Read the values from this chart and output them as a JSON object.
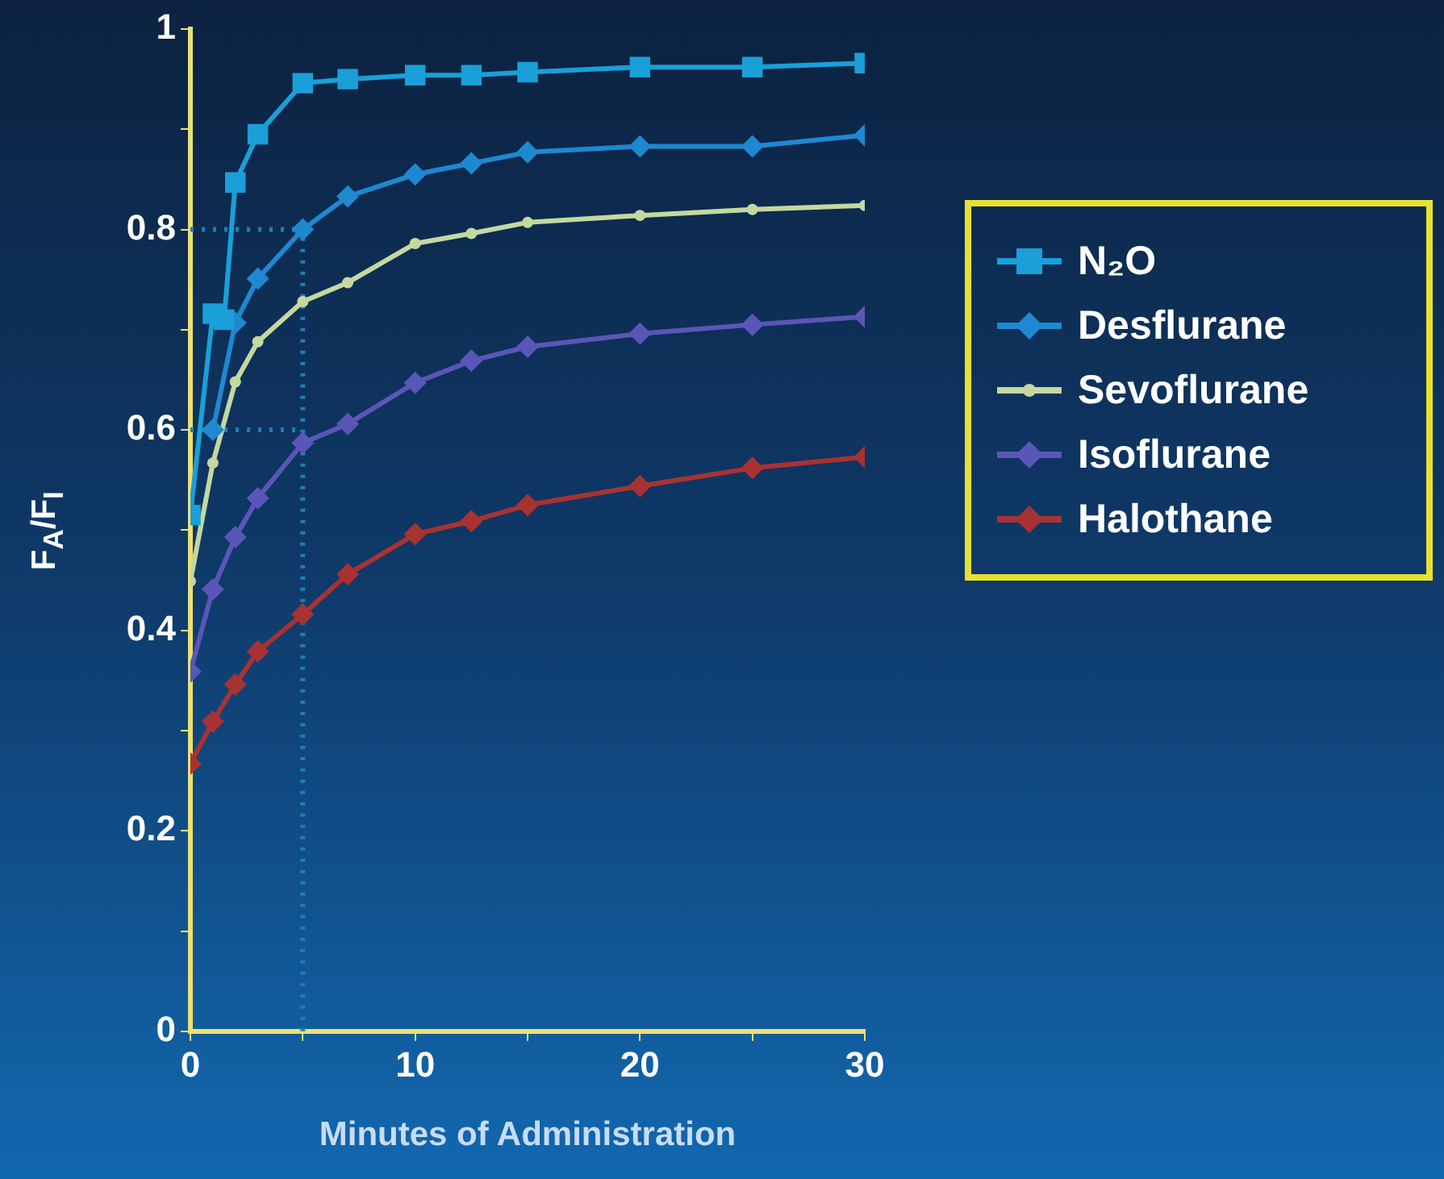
{
  "chart_data": {
    "type": "line",
    "xlabel": "Minutes of Administration",
    "ylabel": "F$_{A}$/F$_{I}$",
    "xlim": [
      0,
      30
    ],
    "xticks": [
      0,
      {
        "value": 5,
        "label": null
      },
      10,
      {
        "value": 15,
        "label": null
      },
      20,
      {
        "value": 25,
        "label": null
      },
      30
    ],
    "ylim": [
      0,
      1
    ],
    "yticks": [
      0,
      {
        "value": 0.1,
        "label": null
      },
      0.2,
      {
        "value": 0.3,
        "label": null
      },
      0.4,
      {
        "value": 0.5,
        "label": null
      },
      0.6,
      {
        "value": 0.7,
        "label": null
      },
      0.8,
      {
        "value": 0.9,
        "label": null
      },
      1
    ],
    "grid": false,
    "legend": "right",
    "line_style": "solid",
    "ref_lines": [
      {
        "axis": "x",
        "value": 5,
        "color": "#1e7fb8",
        "line_style": "dotted"
      },
      {
        "axis": "y",
        "value": 0.8,
        "color": "#1e7fb8",
        "line_style": "dotted"
      },
      {
        "axis": "y",
        "value": 0.6,
        "color": "#1e7fb8",
        "line_style": "dotted"
      }
    ],
    "series": [
      {
        "name": "N₂O",
        "color": "#1a9fd8",
        "marker": "square",
        "x": [
          0,
          1,
          1.5,
          2,
          3,
          5,
          7,
          10,
          12.5,
          15,
          20,
          25,
          30
        ],
        "values": [
          0.515,
          0.716,
          0.71,
          0.847,
          0.895,
          0.946,
          0.95,
          0.954,
          0.954,
          0.957,
          0.962,
          0.962,
          0.966
        ]
      },
      {
        "name": "Desflurane",
        "color": "#1e88d0",
        "marker": "diamond",
        "x": [
          1,
          2,
          3,
          5,
          7,
          10,
          12.5,
          15,
          20,
          25,
          30
        ],
        "values": [
          0.6,
          0.707,
          0.751,
          0.8,
          0.833,
          0.855,
          0.866,
          0.877,
          0.883,
          0.883,
          0.894
        ]
      },
      {
        "name": "Sevoflurane",
        "color": "#c4d8a0",
        "marker": "circle",
        "x": [
          0,
          1,
          2,
          3,
          5,
          7,
          10,
          12.5,
          15,
          20,
          25,
          30
        ],
        "values": [
          0.449,
          0.567,
          0.648,
          0.688,
          0.728,
          0.747,
          0.786,
          0.796,
          0.807,
          0.814,
          0.82,
          0.824
        ]
      },
      {
        "name": "Isoflurane",
        "color": "#5a56b8",
        "marker": "diamond",
        "x": [
          0,
          1,
          2,
          3,
          5,
          7,
          10,
          12.5,
          15,
          20,
          25,
          30
        ],
        "values": [
          0.359,
          0.441,
          0.493,
          0.532,
          0.587,
          0.606,
          0.647,
          0.669,
          0.683,
          0.696,
          0.705,
          0.713
        ]
      },
      {
        "name": "Halothane",
        "color": "#a83232",
        "marker": "diamond",
        "x": [
          0,
          1,
          2,
          3,
          5,
          7,
          10,
          12.5,
          15,
          20,
          25,
          30
        ],
        "values": [
          0.267,
          0.309,
          0.346,
          0.379,
          0.416,
          0.456,
          0.496,
          0.509,
          0.525,
          0.544,
          0.562,
          0.573
        ]
      }
    ]
  }
}
